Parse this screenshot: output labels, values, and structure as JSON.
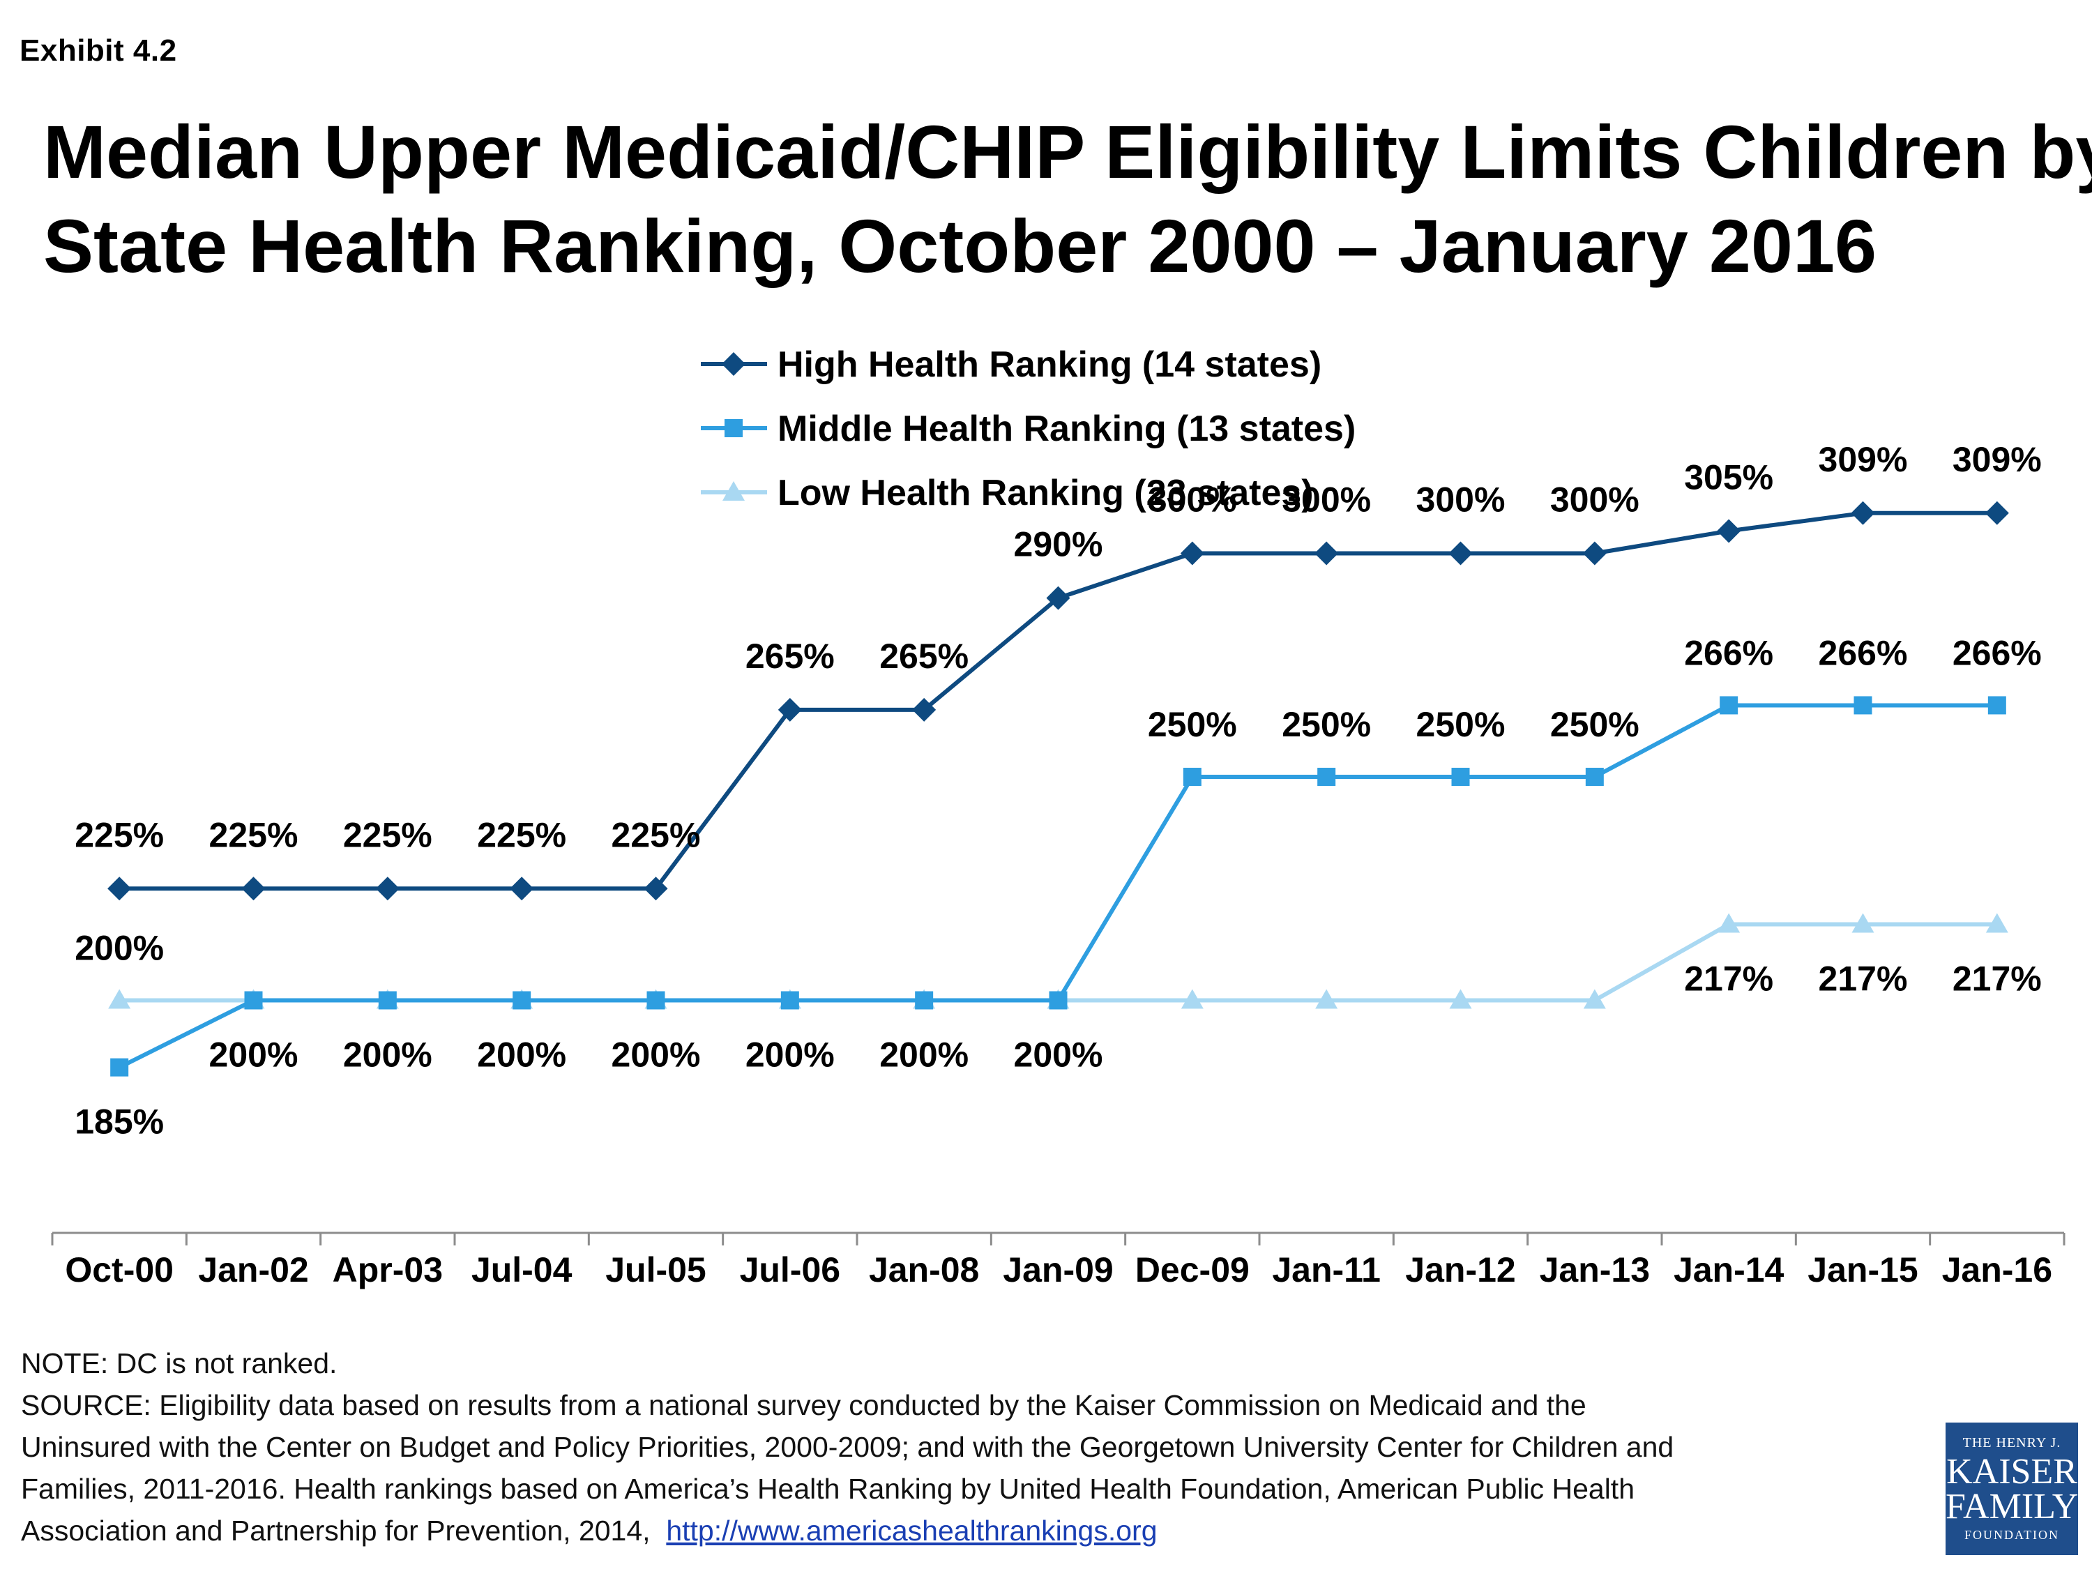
{
  "exhibit_label": "Exhibit 4.2",
  "title_lines": [
    "Median Upper Medicaid/CHIP Eligibility Limits Children by",
    "State Health Ranking, October 2000 – January 2016"
  ],
  "chart_data": {
    "type": "line",
    "categories": [
      "Oct-00",
      "Jan-02",
      "Apr-03",
      "Jul-04",
      "Jul-05",
      "Jul-06",
      "Jan-08",
      "Jan-09",
      "Dec-09",
      "Jan-11",
      "Jan-12",
      "Jan-13",
      "Jan-14",
      "Jan-15",
      "Jan-16"
    ],
    "series": [
      {
        "name": "High Health Ranking (14 states)",
        "color": "#0e4a80",
        "marker": "diamond",
        "values": [
          225,
          225,
          225,
          225,
          225,
          265,
          265,
          290,
          300,
          300,
          300,
          300,
          305,
          309,
          309
        ],
        "labels": [
          "225%",
          "225%",
          "225%",
          "225%",
          "225%",
          "265%",
          "265%",
          "290%",
          "300%",
          "300%",
          "300%",
          "300%",
          "305%",
          "309%",
          "309%"
        ]
      },
      {
        "name": "Middle Health Ranking (13 states)",
        "color": "#2e9ee0",
        "marker": "square",
        "values": [
          185,
          200,
          200,
          200,
          200,
          200,
          200,
          200,
          250,
          250,
          250,
          250,
          266,
          266,
          266
        ],
        "labels": [
          "185%",
          "200%",
          "200%",
          "200%",
          "200%",
          "200%",
          "200%",
          "200%",
          "250%",
          "250%",
          "250%",
          "250%",
          "266%",
          "266%",
          "266%"
        ]
      },
      {
        "name": "Low Health Ranking (23 states)",
        "color": "#a9d8f2",
        "marker": "triangle",
        "values": [
          200,
          200,
          200,
          200,
          200,
          200,
          200,
          200,
          200,
          200,
          200,
          200,
          217,
          217,
          217
        ],
        "labels": [
          "200%",
          "",
          "",
          "",
          "",
          "",
          "",
          "",
          "",
          "",
          "",
          "",
          "217%",
          "217%",
          "217%"
        ]
      }
    ],
    "ylim": [
      150,
      330
    ],
    "grid": false,
    "legend_position": "top-center"
  },
  "footer": {
    "note": "NOTE: DC is not ranked.",
    "source_lines": [
      "SOURCE: Eligibility data based on results from a national survey conducted by the Kaiser Commission on Medicaid and the",
      "Uninsured with the Center on Budget and Policy Priorities, 2000-2009; and with the Georgetown University Center for Children and",
      "Families, 2011-2016. Health rankings based on America’s Health Ranking by United Health Foundation, American Public Health",
      "Association and Partnership for Prevention, 2014,"
    ],
    "link": "http://www.americashealthrankings.org"
  },
  "logo": {
    "line1": "THE HENRY J.",
    "line2": "KAISER",
    "line3": "FAMILY",
    "line4": "FOUNDATION"
  }
}
